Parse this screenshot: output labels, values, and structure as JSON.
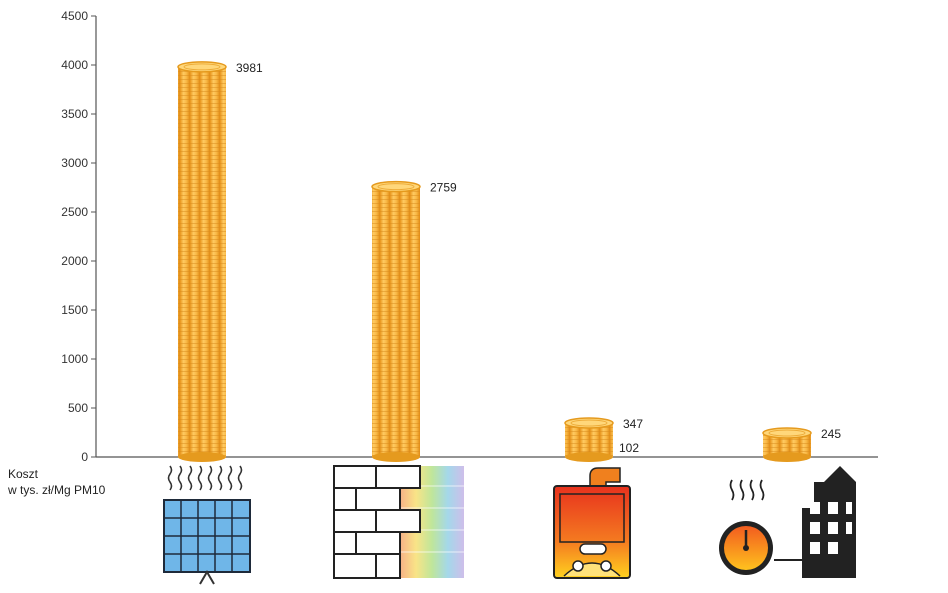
{
  "chart_data": {
    "type": "bar",
    "title_fragment": "",
    "ylabel_line1": "Koszt",
    "ylabel_line2": "w tys. zł/Mg PM10",
    "ylim": [
      0,
      4500
    ],
    "yticks": [
      0,
      500,
      1000,
      1500,
      2000,
      2500,
      3000,
      3500,
      4000,
      4500
    ],
    "categories": [
      "solar-panels",
      "wall-insulation",
      "boiler-replacement",
      "district-heating"
    ],
    "values": [
      3981,
      2759,
      347,
      245
    ],
    "extra_labels": [
      {
        "category_index": 2,
        "value": 102
      }
    ],
    "data_labels": [
      "3981",
      "2759",
      "347",
      "245"
    ],
    "extra_label_text": "102",
    "grid": false,
    "bar_style": "coin-stack",
    "colors": {
      "coin": "#F6B43C",
      "coin_dark": "#E59A1E",
      "coin_light": "#FFD77A",
      "axis": "#555555"
    }
  }
}
